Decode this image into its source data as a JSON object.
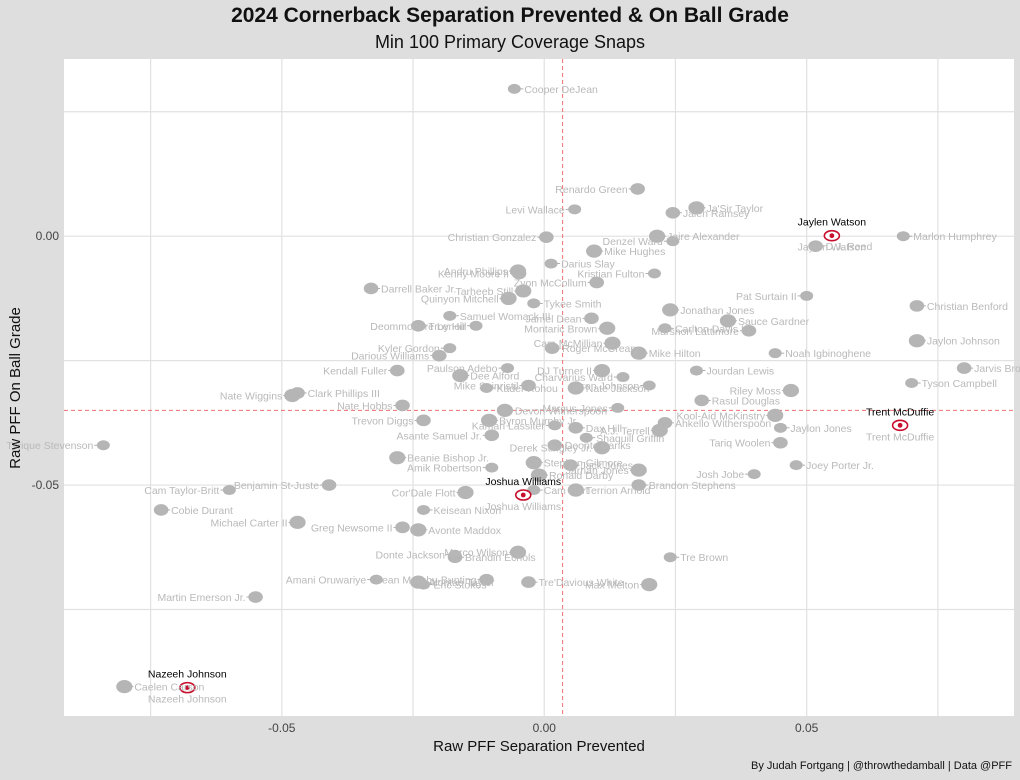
{
  "chart_data": {
    "type": "scatter",
    "title": "2024 Cornerback Separation Prevented & On Ball Grade",
    "subtitle": "Min 100 Primary Coverage Snaps",
    "xlabel": "Raw PFF Separation Prevented",
    "ylabel": "Raw PFF On Ball Grade",
    "caption": "By Judah Fortgang | @throwthedamball | Data @PFF",
    "xlim": [
      -0.0915,
      0.0895
    ],
    "ylim": [
      -0.0964,
      0.0356
    ],
    "x_ticks": [
      -0.05,
      0.0,
      0.05
    ],
    "x_tick_labels": [
      "-0.05",
      "0.00",
      "0.05"
    ],
    "y_ticks": [
      0.0,
      -0.05
    ],
    "y_tick_labels": [
      "0.00",
      "-0.05"
    ],
    "ref_x": 0.0035,
    "ref_y": -0.035,
    "grid": true,
    "highlight_color": "#c8102e",
    "base_color": "#b5b5b5",
    "points": [
      {
        "name": "Cooper DeJean",
        "x": -0.0057,
        "y": 0.0296
      },
      {
        "name": "Renardo Green",
        "x": 0.0178,
        "y": 0.0095
      },
      {
        "name": "Ja'Sir Taylor",
        "x": 0.029,
        "y": 0.0057
      },
      {
        "name": "Levi Wallace",
        "x": 0.0058,
        "y": 0.0054
      },
      {
        "name": "Jalen Ramsey",
        "x": 0.0245,
        "y": 0.0047
      },
      {
        "name": "Jaylen Watson",
        "x": 0.0548,
        "y": 0.0001,
        "highlight": true
      },
      {
        "name": "Marlon Humphrey",
        "x": 0.0684,
        "y": 0.0
      },
      {
        "name": "Christian Gonzalez",
        "x": 0.0004,
        "y": -0.0002
      },
      {
        "name": "Jaire Alexander",
        "x": 0.0215,
        "y": 0.0
      },
      {
        "name": "Denzel Ward",
        "x": 0.0245,
        "y": -0.001
      },
      {
        "name": "D.J. Reed",
        "x": 0.0517,
        "y": -0.002
      },
      {
        "name": "Andru Phillips",
        "x": -0.005,
        "y": -0.007
      },
      {
        "name": "Darius Slay",
        "x": 0.0013,
        "y": -0.0055
      },
      {
        "name": "Kenny Moore II",
        "x": -0.0048,
        "y": -0.0075
      },
      {
        "name": "Mike Hughes",
        "x": 0.0095,
        "y": -0.003
      },
      {
        "name": "Kristian Fulton",
        "x": 0.021,
        "y": -0.0075
      },
      {
        "name": "Darrell Baker Jr.",
        "x": -0.033,
        "y": -0.0105
      },
      {
        "name": "Tarheeb Still",
        "x": -0.004,
        "y": -0.011
      },
      {
        "name": "Tykee Smith",
        "x": -0.002,
        "y": -0.0135
      },
      {
        "name": "Zyon McCollum",
        "x": 0.01,
        "y": -0.0093
      },
      {
        "name": "Jonathan Jones",
        "x": 0.024,
        "y": -0.0148
      },
      {
        "name": "Pat Surtain II",
        "x": 0.05,
        "y": -0.012
      },
      {
        "name": "Christian Benford",
        "x": 0.071,
        "y": -0.014
      },
      {
        "name": "Quinyon Mitchell",
        "x": -0.0068,
        "y": -0.0125
      },
      {
        "name": "Samuel Womack III",
        "x": -0.018,
        "y": -0.016
      },
      {
        "name": "Jamel Dean",
        "x": 0.009,
        "y": -0.0165
      },
      {
        "name": "Sauce Gardner",
        "x": 0.035,
        "y": -0.017
      },
      {
        "name": "Deommodore Lenoir",
        "x": -0.013,
        "y": -0.018
      },
      {
        "name": "Troy Hill",
        "x": -0.024,
        "y": -0.018
      },
      {
        "name": "Montaric Brown",
        "x": 0.012,
        "y": -0.0185
      },
      {
        "name": "Carlton Davis III",
        "x": 0.023,
        "y": -0.0185
      },
      {
        "name": "Marshon Lattimore",
        "x": 0.039,
        "y": -0.019
      },
      {
        "name": "Jaylon Johnson",
        "x": 0.071,
        "y": -0.021
      },
      {
        "name": "Kyler Gordon",
        "x": -0.018,
        "y": -0.0225
      },
      {
        "name": "Roger McCreary",
        "x": 0.0015,
        "y": -0.0225
      },
      {
        "name": "Cam McMillian",
        "x": 0.013,
        "y": -0.0215
      },
      {
        "name": "Noah Igbinoghene",
        "x": 0.044,
        "y": -0.0235
      },
      {
        "name": "Darious Williams",
        "x": -0.02,
        "y": -0.024
      },
      {
        "name": "Mike Hilton",
        "x": 0.018,
        "y": -0.0235
      },
      {
        "name": "Paulson Adebo",
        "x": -0.007,
        "y": -0.0265
      },
      {
        "name": "Jarvis Brownlee Jr.",
        "x": 0.08,
        "y": -0.0265
      },
      {
        "name": "DJ Turner II",
        "x": 0.011,
        "y": -0.027
      },
      {
        "name": "Jourdan Lewis",
        "x": 0.029,
        "y": -0.027
      },
      {
        "name": "Kendall Fuller",
        "x": -0.028,
        "y": -0.027
      },
      {
        "name": "Dee Alford",
        "x": -0.016,
        "y": -0.028
      },
      {
        "name": "Charvarius Ward",
        "x": 0.015,
        "y": -0.0283
      },
      {
        "name": "Clark Phillips III",
        "x": -0.047,
        "y": -0.0315
      },
      {
        "name": "Nate Wiggins",
        "x": -0.048,
        "y": -0.032
      },
      {
        "name": "Kader Kohou",
        "x": -0.011,
        "y": -0.0305
      },
      {
        "name": "Mike Sainristil",
        "x": -0.003,
        "y": -0.03
      },
      {
        "name": "Nate Jackson",
        "x": 0.006,
        "y": -0.0305
      },
      {
        "name": "Taron Johnson",
        "x": 0.02,
        "y": -0.03
      },
      {
        "name": "Rasul Douglas",
        "x": 0.03,
        "y": -0.033
      },
      {
        "name": "Riley Moss",
        "x": 0.047,
        "y": -0.031
      },
      {
        "name": "Tyson Campbell",
        "x": 0.07,
        "y": -0.0295
      },
      {
        "name": "Nate Hobbs",
        "x": -0.027,
        "y": -0.034
      },
      {
        "name": "Devon Witherspoon",
        "x": -0.0075,
        "y": -0.035
      },
      {
        "name": "Marcus Jones",
        "x": 0.014,
        "y": -0.0345
      },
      {
        "name": "Ahkello Witherspoon",
        "x": 0.023,
        "y": -0.0375
      },
      {
        "name": "Kool-Aid McKinstry",
        "x": 0.044,
        "y": -0.036
      },
      {
        "name": "Trent McDuffie",
        "x": 0.0678,
        "y": -0.038,
        "highlight": true
      },
      {
        "name": "Trevon Diggs",
        "x": -0.023,
        "y": -0.037
      },
      {
        "name": "Byron Murphy Jr.",
        "x": -0.0105,
        "y": -0.037
      },
      {
        "name": "Kamari Lassiter",
        "x": 0.002,
        "y": -0.038
      },
      {
        "name": "Dax Hill",
        "x": 0.006,
        "y": -0.0385
      },
      {
        "name": "A.J. Terrell",
        "x": 0.022,
        "y": -0.039
      },
      {
        "name": "Jaylon Jones",
        "x": 0.045,
        "y": -0.0385
      },
      {
        "name": "Asante Samuel Jr.",
        "x": -0.01,
        "y": -0.04
      },
      {
        "name": "Beanie Bishop Jr.",
        "x": -0.028,
        "y": -0.0445
      },
      {
        "name": "Tyrique Stevenson",
        "x": -0.084,
        "y": -0.042
      },
      {
        "name": "Deonte Banks",
        "x": 0.002,
        "y": -0.042
      },
      {
        "name": "Derek Stingley Jr.",
        "x": 0.011,
        "y": -0.0425
      },
      {
        "name": "Shaquill Griffin",
        "x": 0.008,
        "y": -0.0405
      },
      {
        "name": "Tariq Woolen",
        "x": 0.045,
        "y": -0.0415
      },
      {
        "name": "Stephon Gilmore",
        "x": -0.002,
        "y": -0.0455
      },
      {
        "name": "Amik Robertson",
        "x": -0.01,
        "y": -0.0465
      },
      {
        "name": "Jack Jones",
        "x": 0.005,
        "y": -0.046
      },
      {
        "name": "Jarrian Jones",
        "x": 0.018,
        "y": -0.047
      },
      {
        "name": "Joey Porter Jr.",
        "x": 0.048,
        "y": -0.046
      },
      {
        "name": "Benjamin St-Juste",
        "x": -0.041,
        "y": -0.05
      },
      {
        "name": "Ronald Darby",
        "x": -0.001,
        "y": -0.048
      },
      {
        "name": "Josh Jobe",
        "x": 0.04,
        "y": -0.0478
      },
      {
        "name": "Brandon Stephens",
        "x": 0.018,
        "y": -0.05
      },
      {
        "name": "Cor'Dale Flott",
        "x": -0.015,
        "y": -0.0515
      },
      {
        "name": "Cam Hart",
        "x": -0.002,
        "y": -0.051
      },
      {
        "name": "Joshua Williams",
        "x": -0.004,
        "y": -0.052,
        "highlight": true
      },
      {
        "name": "Terrion Arnold",
        "x": 0.006,
        "y": -0.051
      },
      {
        "name": "Cam Taylor-Britt",
        "x": -0.06,
        "y": -0.051
      },
      {
        "name": "Cobie Durant",
        "x": -0.073,
        "y": -0.055
      },
      {
        "name": "Michael Carter II",
        "x": -0.047,
        "y": -0.0575
      },
      {
        "name": "Keisean Nixon",
        "x": -0.023,
        "y": -0.055
      },
      {
        "name": "Greg Newsome II",
        "x": -0.027,
        "y": -0.0585
      },
      {
        "name": "Avonte Maddox",
        "x": -0.024,
        "y": -0.059
      },
      {
        "name": "Donte Jackson",
        "x": -0.017,
        "y": -0.064
      },
      {
        "name": "Brandin Echols",
        "x": -0.017,
        "y": -0.0645
      },
      {
        "name": "Marco Wilson",
        "x": -0.005,
        "y": -0.0635
      },
      {
        "name": "Tre Brown",
        "x": 0.024,
        "y": -0.0645
      },
      {
        "name": "Sean Murphy-Bunting",
        "x": -0.011,
        "y": -0.069
      },
      {
        "name": "Alontae Taylor",
        "x": -0.024,
        "y": -0.0695
      },
      {
        "name": "Amani Oruwariye",
        "x": -0.032,
        "y": -0.069
      },
      {
        "name": "Tre'Davious White",
        "x": -0.003,
        "y": -0.0695
      },
      {
        "name": "Max Melton",
        "x": 0.02,
        "y": -0.07
      },
      {
        "name": "Eric Stokes",
        "x": -0.023,
        "y": -0.07
      },
      {
        "name": "Martin Emerson Jr.",
        "x": -0.055,
        "y": -0.0725
      },
      {
        "name": "Caelen Carson",
        "x": -0.08,
        "y": -0.0905
      },
      {
        "name": "Nazeeh Johnson",
        "x": -0.068,
        "y": -0.0907,
        "highlight": true
      }
    ]
  }
}
